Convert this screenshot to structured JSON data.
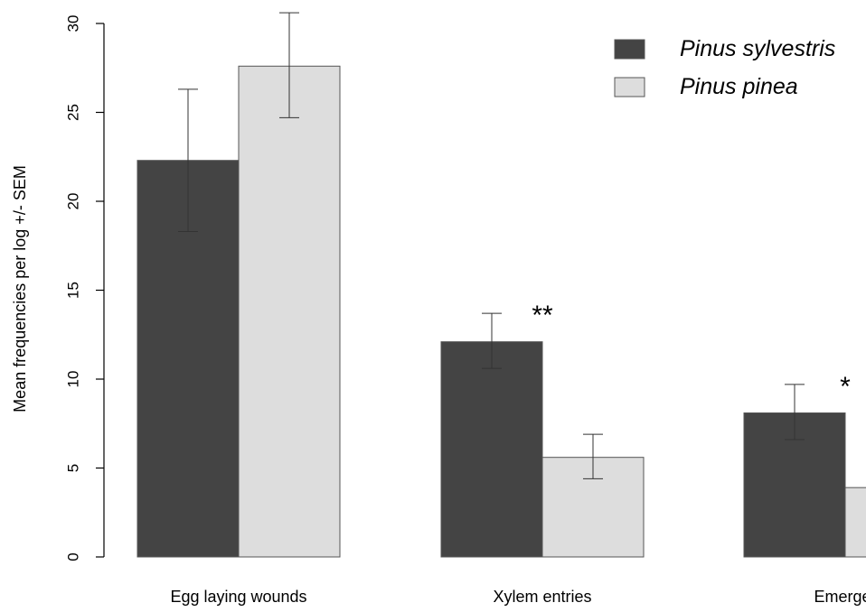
{
  "chart_data": {
    "type": "bar",
    "title": "",
    "xlabel": "",
    "ylabel": "Mean frequencies per log +/- SEM",
    "ylim": [
      0,
      30
    ],
    "yticks": [
      "0",
      "5",
      "10",
      "15",
      "20",
      "25",
      "30"
    ],
    "grid": false,
    "legend_position": "top-right",
    "categories": [
      "Egg laying wounds",
      "Xylem entries",
      "Emerger"
    ],
    "series": [
      {
        "name": "Pinus sylvestris",
        "color": "#444444",
        "values": [
          22.3,
          12.1,
          8.1
        ],
        "error_low": [
          18.3,
          10.6,
          6.6
        ],
        "error_high": [
          26.3,
          13.7,
          9.7
        ]
      },
      {
        "name": "Pinus pinea",
        "color": "#dddddd",
        "values": [
          27.6,
          5.6,
          3.9
        ],
        "error_low": [
          24.7,
          4.4,
          null
        ],
        "error_high": [
          30.6,
          6.9,
          null
        ]
      }
    ],
    "annotations": [
      "",
      "**",
      "*"
    ]
  }
}
